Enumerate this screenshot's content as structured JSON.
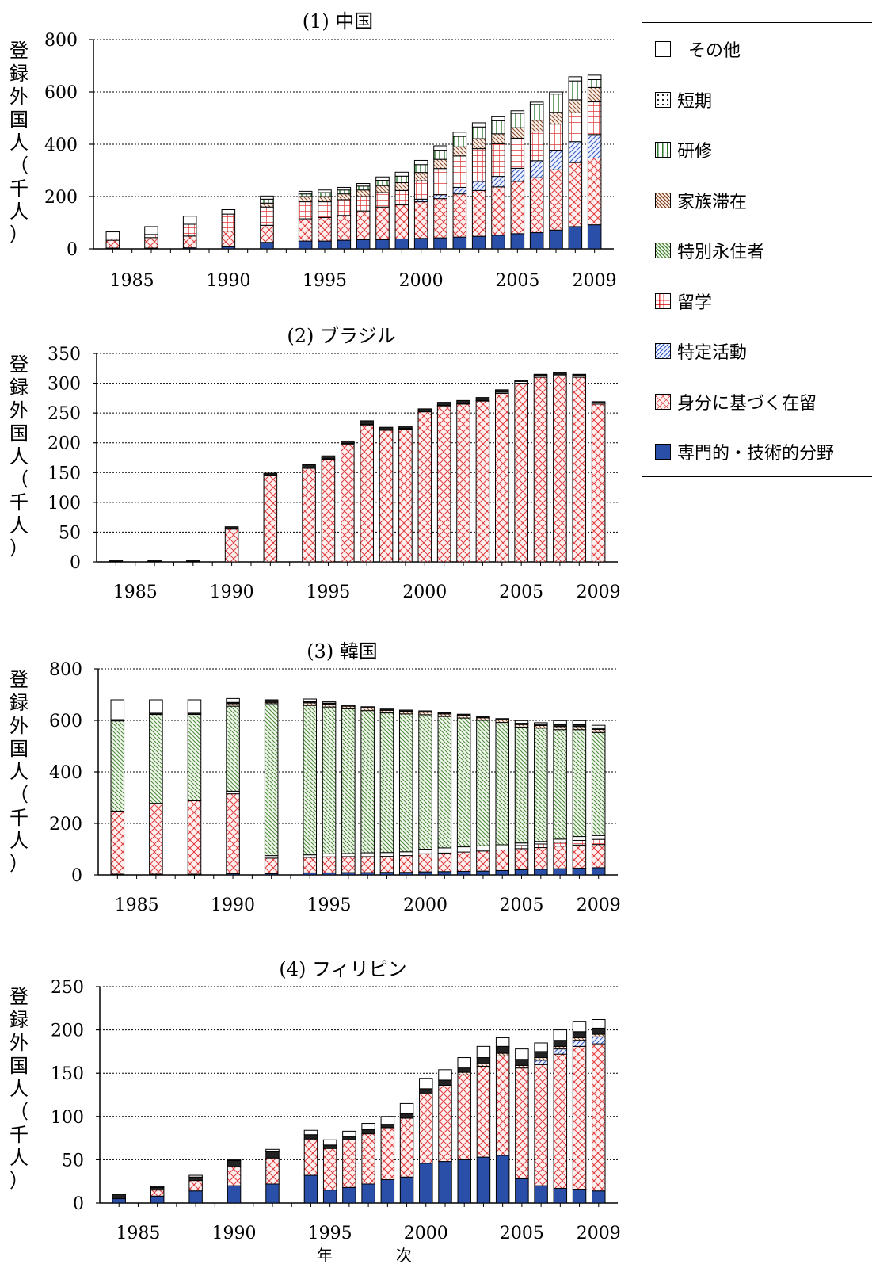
{
  "legend": [
    {
      "key": "other",
      "label": "その他",
      "pattern": "white"
    },
    {
      "key": "shortterm",
      "label": "短期",
      "pattern": "dots"
    },
    {
      "key": "trainee",
      "label": "研修",
      "pattern": "vlines"
    },
    {
      "key": "family",
      "label": "家族滞在",
      "pattern": "diag-brown"
    },
    {
      "key": "special",
      "label": "特別永住者",
      "pattern": "diag-green"
    },
    {
      "key": "study",
      "label": "留学",
      "pattern": "grid-red"
    },
    {
      "key": "designated",
      "label": "特定活動",
      "pattern": "diag-blue"
    },
    {
      "key": "status",
      "label": "身分に基づく在留",
      "pattern": "cross-red"
    },
    {
      "key": "professional",
      "label": "専門的・技術的分野",
      "pattern": "solid-blue"
    }
  ],
  "x_caption": [
    "年",
    "次"
  ],
  "colors": {
    "professional": "#2a4fa8",
    "status": "#e03a3a",
    "designated": "#3b5fc8",
    "study": "#e03a3a",
    "special": "#4c8a3a",
    "family": "#8a4a2a",
    "trainee": "#2e7a2e",
    "shortterm": "#222222"
  },
  "chart_data": [
    {
      "type": "bar",
      "stacked": true,
      "title": "(1) 中国",
      "ylabel": "登録外国人（千人）",
      "ylim": [
        0,
        800
      ],
      "yticks": [
        0,
        200,
        400,
        600,
        800
      ],
      "xticks": [
        1985,
        1990,
        1995,
        2000,
        2005,
        2009
      ],
      "grid": true,
      "years": [
        1984,
        1986,
        1988,
        1990,
        1992,
        1994,
        1995,
        1996,
        1997,
        1998,
        1999,
        2000,
        2001,
        2002,
        2003,
        2004,
        2005,
        2006,
        2007,
        2008,
        2009
      ],
      "series": [
        {
          "name": "専門的・技術的分野",
          "key": "professional",
          "values": [
            3,
            3,
            4,
            8,
            25,
            30,
            30,
            33,
            35,
            35,
            38,
            40,
            42,
            45,
            48,
            52,
            58,
            62,
            72,
            85,
            92
          ]
        },
        {
          "name": "身分に基づく在留",
          "key": "status",
          "values": [
            30,
            40,
            45,
            60,
            65,
            85,
            90,
            95,
            110,
            125,
            130,
            140,
            150,
            165,
            175,
            185,
            200,
            210,
            230,
            245,
            255
          ]
        },
        {
          "name": "特定活動",
          "key": "designated",
          "values": [
            0,
            0,
            0,
            0,
            0,
            0,
            0,
            0,
            0,
            0,
            0,
            10,
            15,
            25,
            35,
            40,
            50,
            65,
            75,
            80,
            90
          ]
        },
        {
          "name": "留学",
          "key": "study",
          "values": [
            5,
            12,
            45,
            65,
            70,
            65,
            60,
            60,
            55,
            55,
            55,
            70,
            100,
            120,
            125,
            125,
            115,
            110,
            100,
            110,
            125
          ]
        },
        {
          "name": "家族滞在",
          "key": "family",
          "values": [
            0,
            0,
            0,
            0,
            15,
            20,
            20,
            22,
            25,
            27,
            30,
            32,
            35,
            35,
            38,
            38,
            40,
            45,
            45,
            50,
            55
          ]
        },
        {
          "name": "研修",
          "key": "trainee",
          "values": [
            0,
            0,
            0,
            0,
            15,
            10,
            15,
            15,
            15,
            20,
            25,
            30,
            35,
            40,
            45,
            50,
            55,
            60,
            70,
            72,
            30
          ]
        },
        {
          "name": "その他",
          "key": "other",
          "values": [
            27,
            30,
            31,
            17,
            12,
            10,
            10,
            10,
            10,
            13,
            15,
            16,
            17,
            16,
            16,
            15,
            10,
            9,
            8,
            16,
            17
          ]
        }
      ]
    },
    {
      "type": "bar",
      "stacked": true,
      "title": "(2) ブラジル",
      "ylabel": "登録外国人（千人）",
      "ylim": [
        0,
        350
      ],
      "yticks": [
        0,
        50,
        100,
        150,
        200,
        250,
        300,
        350
      ],
      "xticks": [
        1985,
        1990,
        1995,
        2000,
        2005,
        2009
      ],
      "grid": true,
      "years": [
        1984,
        1986,
        1988,
        1990,
        1992,
        1994,
        1995,
        1996,
        1997,
        1998,
        1999,
        2000,
        2001,
        2002,
        2003,
        2004,
        2005,
        2006,
        2007,
        2008,
        2009
      ],
      "series": [
        {
          "name": "専門的・技術的分野",
          "key": "professional",
          "values": [
            0,
            0,
            0,
            0,
            0,
            0,
            0,
            0,
            0,
            0,
            0,
            0,
            0,
            0,
            0,
            0,
            0,
            0,
            0,
            0,
            0
          ]
        },
        {
          "name": "身分に基づく在留",
          "key": "status",
          "values": [
            1,
            1,
            1,
            55,
            145,
            157,
            172,
            198,
            230,
            221,
            223,
            252,
            262,
            265,
            270,
            283,
            300,
            310,
            313,
            310,
            265
          ]
        },
        {
          "name": "その他",
          "key": "other",
          "values": [
            0,
            0,
            0,
            1,
            1,
            1,
            1,
            1,
            1,
            1,
            1,
            1,
            1,
            1,
            1,
            2,
            3,
            3,
            2,
            3,
            2
          ]
        },
        {
          "name": "短期",
          "key": "shortterm",
          "values": [
            2,
            2,
            2,
            3,
            3,
            5,
            5,
            4,
            6,
            4,
            4,
            4,
            5,
            5,
            5,
            4,
            2,
            2,
            3,
            2,
            2
          ]
        }
      ]
    },
    {
      "type": "bar",
      "stacked": true,
      "title": "(3) 韓国",
      "ylabel": "登録外国人（千人）",
      "ylim": [
        0,
        800
      ],
      "yticks": [
        0,
        200,
        400,
        600,
        800
      ],
      "xticks": [
        1985,
        1990,
        1995,
        2000,
        2005,
        2009
      ],
      "grid": true,
      "years": [
        1984,
        1986,
        1988,
        1990,
        1992,
        1994,
        1995,
        1996,
        1997,
        1998,
        1999,
        2000,
        2001,
        2002,
        2003,
        2004,
        2005,
        2006,
        2007,
        2008,
        2009
      ],
      "series": [
        {
          "name": "専門的・技術的分野",
          "key": "professional",
          "values": [
            3,
            3,
            3,
            5,
            5,
            8,
            8,
            9,
            9,
            10,
            10,
            12,
            13,
            14,
            15,
            17,
            20,
            22,
            24,
            26,
            28
          ]
        },
        {
          "name": "身分に基づく在留",
          "key": "status",
          "values": [
            245,
            275,
            285,
            310,
            60,
            60,
            62,
            62,
            62,
            62,
            65,
            70,
            72,
            75,
            78,
            80,
            82,
            84,
            88,
            90,
            90
          ]
        },
        {
          "name": "留学",
          "key": "study",
          "values": [
            0,
            0,
            0,
            0,
            0,
            0,
            0,
            0,
            0,
            0,
            0,
            0,
            0,
            0,
            0,
            0,
            12,
            14,
            15,
            18,
            20
          ]
        },
        {
          "name": "その他",
          "key": "other",
          "values": [
            0,
            0,
            0,
            10,
            10,
            10,
            12,
            12,
            15,
            15,
            15,
            18,
            20,
            20,
            20,
            20,
            10,
            10,
            12,
            15,
            15
          ]
        },
        {
          "name": "特別永住者",
          "key": "special",
          "values": [
            350,
            345,
            335,
            330,
            590,
            580,
            570,
            562,
            552,
            542,
            535,
            522,
            510,
            500,
            487,
            475,
            450,
            440,
            425,
            415,
            400
          ]
        },
        {
          "name": "家族滞在",
          "key": "family",
          "values": [
            0,
            0,
            0,
            10,
            5,
            10,
            10,
            10,
            10,
            10,
            10,
            10,
            10,
            10,
            10,
            10,
            10,
            10,
            12,
            12,
            12
          ]
        },
        {
          "name": "短期",
          "key": "shortterm",
          "values": [
            5,
            5,
            5,
            5,
            10,
            5,
            5,
            5,
            5,
            5,
            5,
            5,
            5,
            5,
            5,
            5,
            5,
            6,
            8,
            8,
            6
          ]
        },
        {
          "name": "その他",
          "key": "other",
          "values": [
            77,
            52,
            52,
            15,
            0,
            10,
            5,
            0,
            0,
            0,
            0,
            0,
            0,
            0,
            0,
            0,
            10,
            5,
            15,
            15,
            10
          ]
        }
      ]
    },
    {
      "type": "bar",
      "stacked": true,
      "title": "(4) フィリピン",
      "ylabel": "登録外国人（千人）",
      "ylim": [
        0,
        250
      ],
      "yticks": [
        0,
        50,
        100,
        150,
        200,
        250
      ],
      "xticks": [
        1985,
        1990,
        1995,
        2000,
        2005,
        2009
      ],
      "grid": true,
      "years": [
        1984,
        1986,
        1988,
        1990,
        1992,
        1994,
        1995,
        1996,
        1997,
        1998,
        1999,
        2000,
        2001,
        2002,
        2003,
        2004,
        2005,
        2006,
        2007,
        2008,
        2009
      ],
      "series": [
        {
          "name": "専門的・技術的分野",
          "key": "professional",
          "values": [
            5,
            8,
            14,
            20,
            22,
            32,
            15,
            18,
            22,
            27,
            30,
            46,
            48,
            50,
            53,
            55,
            28,
            20,
            17,
            16,
            14
          ]
        },
        {
          "name": "身分に基づく在留",
          "key": "status",
          "values": [
            0,
            7,
            12,
            22,
            30,
            42,
            48,
            55,
            58,
            60,
            68,
            80,
            88,
            98,
            105,
            115,
            128,
            140,
            155,
            165,
            170
          ]
        },
        {
          "name": "特定活動",
          "key": "designated",
          "values": [
            0,
            0,
            0,
            0,
            0,
            0,
            0,
            0,
            0,
            0,
            0,
            0,
            0,
            0,
            0,
            0,
            0,
            5,
            6,
            7,
            8
          ]
        },
        {
          "name": "家族滞在",
          "key": "family",
          "values": [
            0,
            0,
            0,
            0,
            0,
            0,
            0,
            0,
            0,
            0,
            0,
            0,
            0,
            3,
            3,
            3,
            3,
            3,
            3,
            3,
            3
          ]
        },
        {
          "name": "短期",
          "key": "shortterm",
          "values": [
            5,
            3,
            4,
            7,
            8,
            5,
            4,
            4,
            5,
            4,
            5,
            6,
            6,
            5,
            7,
            8,
            7,
            7,
            7,
            7,
            7
          ]
        },
        {
          "name": "その他",
          "key": "other",
          "values": [
            0,
            1,
            2,
            1,
            2,
            5,
            6,
            6,
            7,
            9,
            12,
            12,
            12,
            12,
            13,
            10,
            12,
            10,
            12,
            12,
            10
          ]
        }
      ]
    }
  ]
}
